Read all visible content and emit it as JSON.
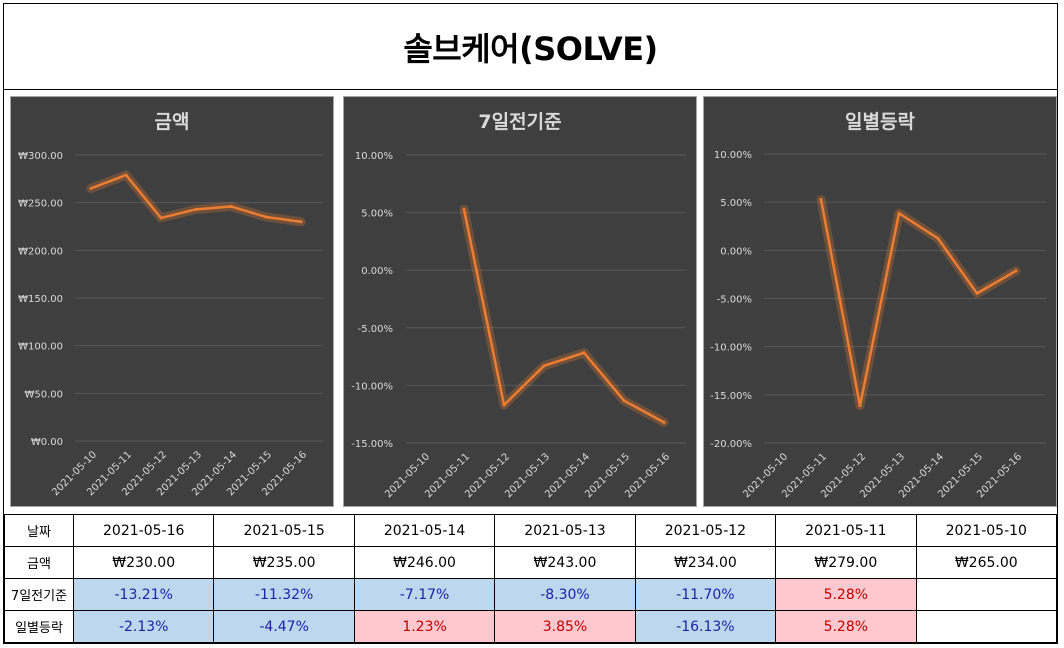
{
  "title": "솔브케어(SOLVE)",
  "colors": {
    "chart_bg": "#3f3f3f",
    "line": "#ed7d31",
    "neg_bg": "#bdd7ee",
    "neg_text": "#1f1fa8",
    "pos_bg": "#ffc7ce",
    "pos_text": "#c00000"
  },
  "chart_data": [
    {
      "type": "line",
      "title": "금액",
      "x": [
        "2021-05-10",
        "2021-05-11",
        "2021-05-12",
        "2021-05-13",
        "2021-05-14",
        "2021-05-15",
        "2021-05-16"
      ],
      "series": [
        {
          "name": "금액",
          "values": [
            265,
            279,
            234,
            243,
            246,
            235,
            230
          ]
        }
      ],
      "ylim": [
        0,
        300
      ],
      "yticks": [
        0,
        50,
        100,
        150,
        200,
        250,
        300
      ],
      "ytick_labels": [
        "₩0.00",
        "₩50.00",
        "₩100.00",
        "₩150.00",
        "₩200.00",
        "₩250.00",
        "₩300.00"
      ],
      "grid": true
    },
    {
      "type": "line",
      "title": "7일전기준",
      "x": [
        "2021-05-10",
        "2021-05-11",
        "2021-05-12",
        "2021-05-13",
        "2021-05-14",
        "2021-05-15",
        "2021-05-16"
      ],
      "series": [
        {
          "name": "7일전기준",
          "values": [
            null,
            5.28,
            -11.7,
            -8.3,
            -7.17,
            -11.32,
            -13.21
          ]
        }
      ],
      "ylim": [
        -15,
        10
      ],
      "yticks": [
        -15,
        -10,
        -5,
        0,
        5,
        10
      ],
      "ytick_labels": [
        "-15.00%",
        "-10.00%",
        "-5.00%",
        "0.00%",
        "5.00%",
        "10.00%"
      ],
      "grid": true
    },
    {
      "type": "line",
      "title": "일별등락",
      "x": [
        "2021-05-10",
        "2021-05-11",
        "2021-05-12",
        "2021-05-13",
        "2021-05-14",
        "2021-05-15",
        "2021-05-16"
      ],
      "series": [
        {
          "name": "일별등락",
          "values": [
            null,
            5.28,
            -16.13,
            3.85,
            1.23,
            -4.47,
            -2.13
          ]
        }
      ],
      "ylim": [
        -20,
        10
      ],
      "yticks": [
        -20,
        -15,
        -10,
        -5,
        0,
        5,
        10
      ],
      "ytick_labels": [
        "-20.00%",
        "-15.00%",
        "-10.00%",
        "-5.00%",
        "0.00%",
        "5.00%",
        "10.00%"
      ],
      "grid": true
    }
  ],
  "table": {
    "rows": [
      {
        "label": "날짜",
        "cells": [
          "2021-05-16",
          "2021-05-15",
          "2021-05-14",
          "2021-05-13",
          "2021-05-12",
          "2021-05-11",
          "2021-05-10"
        ],
        "styles": [
          "",
          "",
          "",
          "",
          "",
          "",
          ""
        ]
      },
      {
        "label": "금액",
        "cells": [
          "₩230.00",
          "₩235.00",
          "₩246.00",
          "₩243.00",
          "₩234.00",
          "₩279.00",
          "₩265.00"
        ],
        "styles": [
          "",
          "",
          "",
          "",
          "",
          "",
          ""
        ]
      },
      {
        "label": "7일전기준",
        "cells": [
          "-13.21%",
          "-11.32%",
          "-7.17%",
          "-8.30%",
          "-11.70%",
          "5.28%",
          ""
        ],
        "styles": [
          "neg",
          "neg",
          "neg",
          "neg",
          "neg",
          "pos",
          "empty"
        ]
      },
      {
        "label": "일별등락",
        "cells": [
          "-2.13%",
          "-4.47%",
          "1.23%",
          "3.85%",
          "-16.13%",
          "5.28%",
          ""
        ],
        "styles": [
          "neg",
          "neg",
          "pos",
          "pos",
          "neg",
          "pos",
          "empty"
        ]
      }
    ]
  }
}
